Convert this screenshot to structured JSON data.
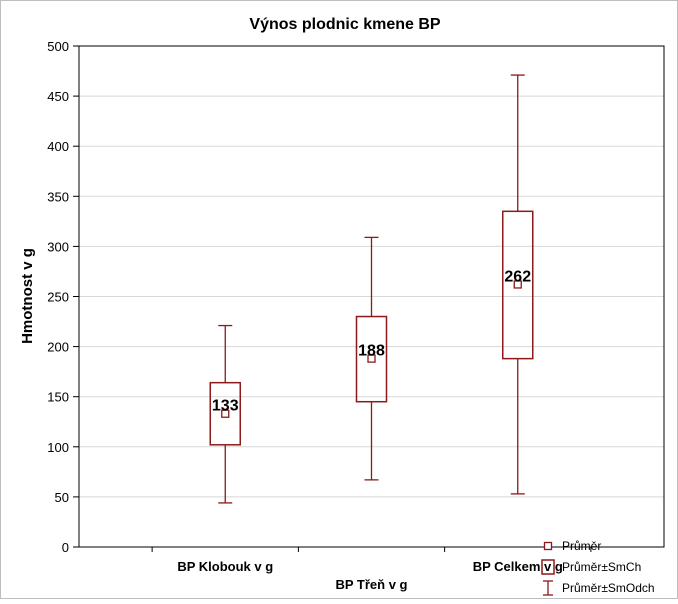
{
  "chart_data": {
    "type": "box",
    "title": "Výnos plodnic kmene BP",
    "ylabel": "Hmotnost v g",
    "xlabel": "",
    "ylim": [
      0,
      500
    ],
    "yticks": [
      0,
      50,
      100,
      150,
      200,
      250,
      300,
      350,
      400,
      450,
      500
    ],
    "grid": true,
    "legend_position": "bottom-right",
    "colors": {
      "series": "#8b1a1a",
      "axis": "#000000",
      "grid": "#d8d8d8"
    },
    "categories": [
      "BP Klobouk v g",
      "BP Třeň v g",
      "BP Celkem v g"
    ],
    "series": [
      {
        "category": "BP Klobouk v g",
        "mean": 133,
        "mean_label": "133",
        "se_low": 102,
        "se_high": 164,
        "sd_low": 44,
        "sd_high": 221
      },
      {
        "category": "BP Třeň v g",
        "mean": 188,
        "mean_label": "188",
        "se_low": 145,
        "se_high": 230,
        "sd_low": 67,
        "sd_high": 309
      },
      {
        "category": "BP Celkem v g",
        "mean": 262,
        "mean_label": "262",
        "se_low": 188,
        "se_high": 335,
        "sd_low": 53,
        "sd_high": 471
      }
    ],
    "legend": [
      {
        "label": "Průměr",
        "symbol": "square-marker-icon"
      },
      {
        "label": "Průměr±SmCh",
        "symbol": "box-icon"
      },
      {
        "label": "Průměr±SmOdch",
        "symbol": "whisker-icon"
      }
    ]
  }
}
